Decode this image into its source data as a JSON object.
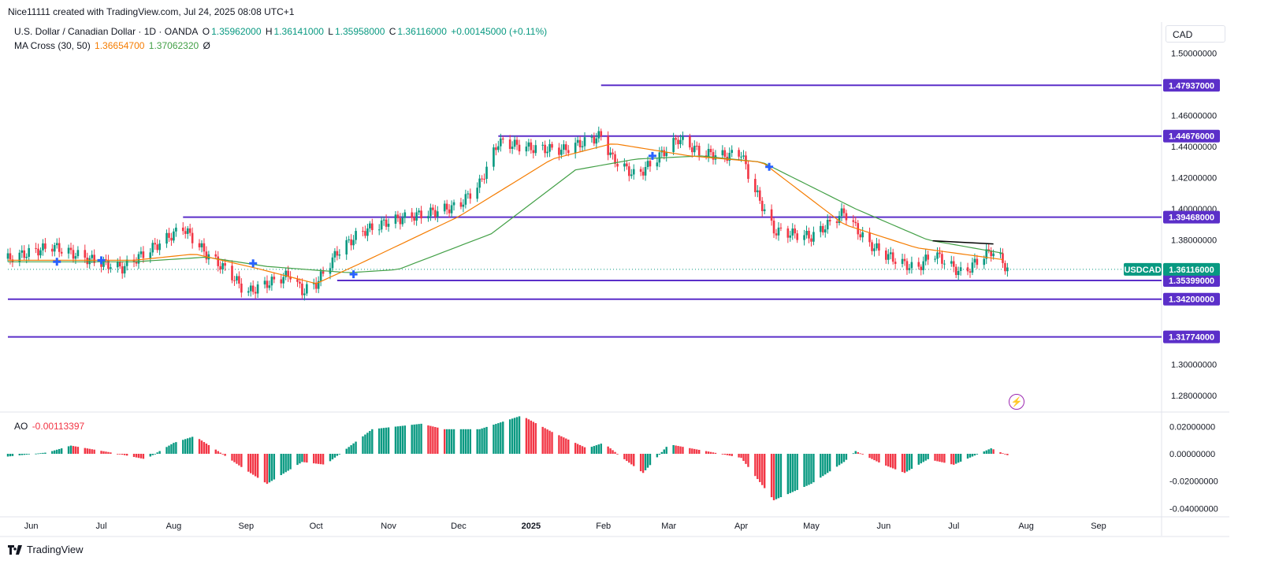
{
  "header": {
    "attribution": "Nice11111 created with TradingView.com, Jul 24, 2025 08:08 UTC+1"
  },
  "legend": {
    "symbol": "U.S. Dollar / Canadian Dollar · 1D · OANDA",
    "o_label": "O",
    "o_value": "1.35962000",
    "h_label": "H",
    "h_value": "1.36141000",
    "l_label": "L",
    "l_value": "1.35958000",
    "c_label": "C",
    "c_value": "1.36116000",
    "change": "+0.00145000 (+0.11%)",
    "ma_label": "MA Cross (30, 50)",
    "ma_fast": "1.36654700",
    "ma_slow": "1.37062320",
    "ma_extra": "Ø",
    "ao_label": "AO",
    "ao_value": "-0.00113397"
  },
  "currency": "CAD",
  "footer": {
    "brand": "TradingView"
  },
  "colors": {
    "up": "#089981",
    "down": "#f23645",
    "ma_fast": "#f57c00",
    "ma_slow": "#43a047",
    "level": "#5b2fc9",
    "cross": "#2962ff",
    "trend": "#000000"
  },
  "chart_data": [
    {
      "type": "candlestick",
      "title": "U.S. Dollar / Canadian Dollar · 1D · OANDA",
      "ylim": [
        1.27,
        1.52
      ],
      "y_ticks": [
        1.5,
        1.48,
        1.46,
        1.44,
        1.42,
        1.4,
        1.38,
        1.36,
        1.34,
        1.32,
        1.3,
        1.28
      ],
      "y_tick_labels": [
        "1.50000000",
        "1.46000000",
        "1.44000000",
        "1.42000000",
        "1.40000000",
        "1.38000000",
        "1.30000000",
        "1.28000000"
      ],
      "x_labels": [
        "Jun",
        "Jul",
        "Aug",
        "Sep",
        "Oct",
        "Nov",
        "Dec",
        "2025",
        "Feb",
        "Mar",
        "Apr",
        "May",
        "Jun",
        "Jul",
        "Aug",
        "Sep"
      ],
      "x_label_dates": [
        "2024-06-01",
        "2024-07-01",
        "2024-08-01",
        "2024-09-01",
        "2024-10-01",
        "2024-11-01",
        "2024-12-01",
        "2025-01-01",
        "2025-02-01",
        "2025-03-01",
        "2025-04-01",
        "2025-05-01",
        "2025-06-01",
        "2025-07-01",
        "2025-08-01",
        "2025-09-01"
      ],
      "date_range": [
        "2024-05-22",
        "2025-09-28"
      ],
      "price_path": [
        [
          "2024-05-22",
          1.368
        ],
        [
          "2024-06-10",
          1.376
        ],
        [
          "2024-06-25",
          1.368
        ],
        [
          "2024-07-10",
          1.362
        ],
        [
          "2024-07-20",
          1.372
        ],
        [
          "2024-08-05",
          1.388
        ],
        [
          "2024-08-15",
          1.371
        ],
        [
          "2024-08-25",
          1.359
        ],
        [
          "2024-09-01",
          1.346
        ],
        [
          "2024-09-10",
          1.352
        ],
        [
          "2024-09-20",
          1.358
        ],
        [
          "2024-09-25",
          1.347
        ],
        [
          "2024-10-01",
          1.352
        ],
        [
          "2024-10-10",
          1.372
        ],
        [
          "2024-10-20",
          1.385
        ],
        [
          "2024-11-01",
          1.392
        ],
        [
          "2024-11-10",
          1.395
        ],
        [
          "2024-11-20",
          1.398
        ],
        [
          "2024-12-01",
          1.402
        ],
        [
          "2024-12-10",
          1.416
        ],
        [
          "2024-12-18",
          1.443
        ],
        [
          "2025-01-01",
          1.439
        ],
        [
          "2025-01-15",
          1.438
        ],
        [
          "2025-01-31",
          1.447
        ],
        [
          "2025-02-05",
          1.432
        ],
        [
          "2025-02-15",
          1.421
        ],
        [
          "2025-02-25",
          1.434
        ],
        [
          "2025-03-05",
          1.445
        ],
        [
          "2025-03-15",
          1.436
        ],
        [
          "2025-03-25",
          1.434
        ],
        [
          "2025-04-01",
          1.436
        ],
        [
          "2025-04-05",
          1.418
        ],
        [
          "2025-04-10",
          1.402
        ],
        [
          "2025-04-15",
          1.386
        ],
        [
          "2025-05-01",
          1.382
        ],
        [
          "2025-05-10",
          1.392
        ],
        [
          "2025-05-15",
          1.398
        ],
        [
          "2025-05-25",
          1.378
        ],
        [
          "2025-06-05",
          1.368
        ],
        [
          "2025-06-15",
          1.361
        ],
        [
          "2025-06-22",
          1.372
        ],
        [
          "2025-07-01",
          1.362
        ],
        [
          "2025-07-05",
          1.358
        ],
        [
          "2025-07-12",
          1.368
        ],
        [
          "2025-07-17",
          1.373
        ],
        [
          "2025-07-21",
          1.368
        ],
        [
          "2025-07-24",
          1.361
        ]
      ],
      "ma_fast_path": [
        [
          "2024-05-22",
          1.367
        ],
        [
          "2024-07-15",
          1.367
        ],
        [
          "2024-08-10",
          1.371
        ],
        [
          "2024-09-05",
          1.362
        ],
        [
          "2024-10-01",
          1.352
        ],
        [
          "2024-10-20",
          1.365
        ],
        [
          "2024-12-01",
          1.395
        ],
        [
          "2025-01-10",
          1.432
        ],
        [
          "2025-02-05",
          1.442
        ],
        [
          "2025-03-10",
          1.434
        ],
        [
          "2025-04-10",
          1.43
        ],
        [
          "2025-05-15",
          1.39
        ],
        [
          "2025-06-15",
          1.375
        ],
        [
          "2025-07-24",
          1.367
        ]
      ],
      "ma_slow_path": [
        [
          "2024-05-22",
          1.366
        ],
        [
          "2024-07-15",
          1.366
        ],
        [
          "2024-08-15",
          1.369
        ],
        [
          "2024-09-10",
          1.363
        ],
        [
          "2024-10-15",
          1.359
        ],
        [
          "2024-11-05",
          1.361
        ],
        [
          "2024-12-15",
          1.384
        ],
        [
          "2025-01-20",
          1.425
        ],
        [
          "2025-02-15",
          1.432
        ],
        [
          "2025-03-15",
          1.434
        ],
        [
          "2025-04-10",
          1.43
        ],
        [
          "2025-05-20",
          1.4
        ],
        [
          "2025-06-20",
          1.38
        ],
        [
          "2025-07-24",
          1.371
        ]
      ],
      "levels": [
        {
          "value": 1.47937,
          "label": "1.47937000",
          "start": "2025-01-31"
        },
        {
          "value": 1.44676,
          "label": "1.44676000",
          "start": "2024-12-18"
        },
        {
          "value": 1.39468,
          "label": "1.39468000",
          "start": "2024-08-05"
        },
        {
          "value": 1.35399,
          "label": "1.35399000",
          "start": "2024-10-10"
        },
        {
          "value": 1.342,
          "label": "1.34200000",
          "start": "2024-05-22"
        },
        {
          "value": 1.31774,
          "label": "1.31774000",
          "start": "2024-05-22"
        }
      ],
      "current_price": {
        "symbol": "USDCAD",
        "value": 1.36116,
        "label": "1.36116000"
      },
      "trend_line": [
        [
          "2025-06-22",
          1.3795
        ],
        [
          "2025-07-18",
          1.3775
        ]
      ],
      "cross_markers": [
        [
          "2024-06-12",
          1.366
        ],
        [
          "2024-07-01",
          1.367
        ],
        [
          "2024-09-04",
          1.365
        ],
        [
          "2024-10-17",
          1.358
        ],
        [
          "2025-02-22",
          1.434
        ],
        [
          "2025-04-13",
          1.427
        ]
      ]
    },
    {
      "type": "histogram",
      "title": "AO",
      "ylim": [
        -0.045,
        0.03
      ],
      "y_ticks": [
        0.02,
        0.0,
        -0.02,
        -0.04
      ],
      "y_tick_labels": [
        "0.02000000",
        "0.00000000",
        "-0.02000000",
        "-0.04000000"
      ],
      "ao_path": [
        [
          "2024-05-22",
          -0.002
        ],
        [
          "2024-06-08",
          0.001
        ],
        [
          "2024-06-18",
          0.006
        ],
        [
          "2024-07-05",
          0.001
        ],
        [
          "2024-07-20",
          -0.004
        ],
        [
          "2024-08-01",
          0.008
        ],
        [
          "2024-08-10",
          0.013
        ],
        [
          "2024-08-20",
          0.002
        ],
        [
          "2024-09-01",
          -0.012
        ],
        [
          "2024-09-10",
          -0.022
        ],
        [
          "2024-09-25",
          -0.006
        ],
        [
          "2024-10-05",
          -0.008
        ],
        [
          "2024-10-15",
          0.005
        ],
        [
          "2024-10-25",
          0.018
        ],
        [
          "2024-11-15",
          0.022
        ],
        [
          "2024-11-25",
          0.018
        ],
        [
          "2024-12-10",
          0.018
        ],
        [
          "2024-12-28",
          0.028
        ],
        [
          "2025-01-10",
          0.016
        ],
        [
          "2025-01-25",
          0.004
        ],
        [
          "2025-02-01",
          0.008
        ],
        [
          "2025-02-10",
          -0.004
        ],
        [
          "2025-02-18",
          -0.014
        ],
        [
          "2025-03-01",
          0.007
        ],
        [
          "2025-03-20",
          0.001
        ],
        [
          "2025-04-01",
          -0.003
        ],
        [
          "2025-04-15",
          -0.034
        ],
        [
          "2025-05-01",
          -0.022
        ],
        [
          "2025-05-15",
          -0.006
        ],
        [
          "2025-05-20",
          0.002
        ],
        [
          "2025-06-01",
          -0.008
        ],
        [
          "2025-06-10",
          -0.014
        ],
        [
          "2025-06-20",
          -0.004
        ],
        [
          "2025-07-01",
          -0.008
        ],
        [
          "2025-07-17",
          0.004
        ],
        [
          "2025-07-24",
          -0.001
        ]
      ]
    }
  ]
}
